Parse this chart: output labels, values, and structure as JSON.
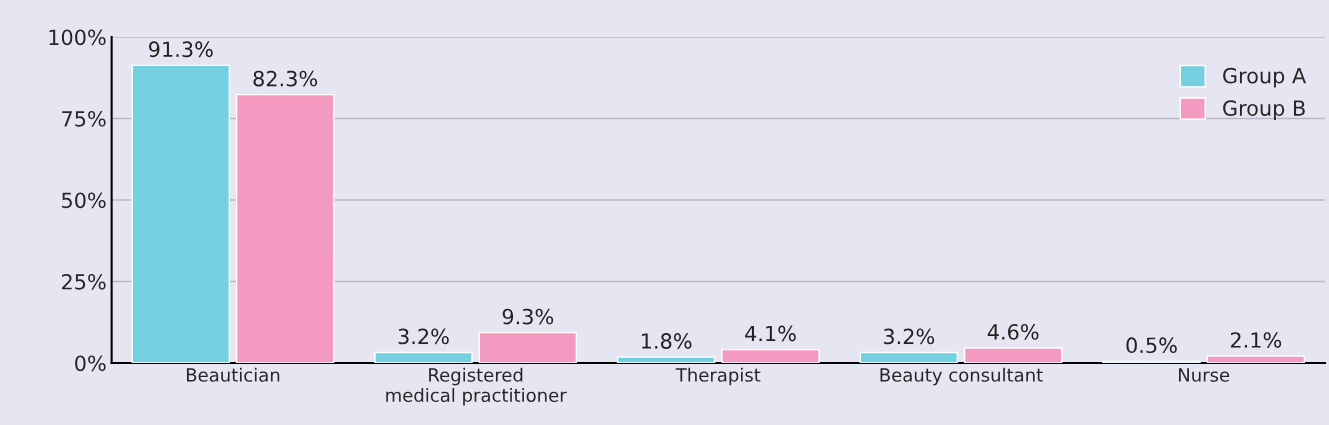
{
  "chart_data": {
    "type": "bar",
    "categories": [
      "Beautician",
      "Registered\nmedical practitioner",
      "Therapist",
      "Beauty consultant",
      "Nurse"
    ],
    "series": [
      {
        "name": "Group A",
        "color": "#74cfe0",
        "values": [
          91.3,
          3.2,
          1.8,
          3.2,
          0.5
        ],
        "value_labels": [
          "91.3%",
          "3.2%",
          "1.8%",
          "3.2%",
          "0.5%"
        ]
      },
      {
        "name": "Group B",
        "color": "#f49ac1",
        "values": [
          82.3,
          9.3,
          4.1,
          4.6,
          2.1
        ],
        "value_labels": [
          "82.3%",
          "9.3%",
          "4.1%",
          "4.6%",
          "2.1%"
        ]
      }
    ],
    "ylim": [
      0,
      100
    ],
    "yticks": [
      {
        "value": 0,
        "label": "0%"
      },
      {
        "value": 25,
        "label": "25%"
      },
      {
        "value": 50,
        "label": "50%"
      },
      {
        "value": 75,
        "label": "75%"
      },
      {
        "value": 100,
        "label": "100%"
      }
    ],
    "grid": "y",
    "legend": "top right"
  }
}
